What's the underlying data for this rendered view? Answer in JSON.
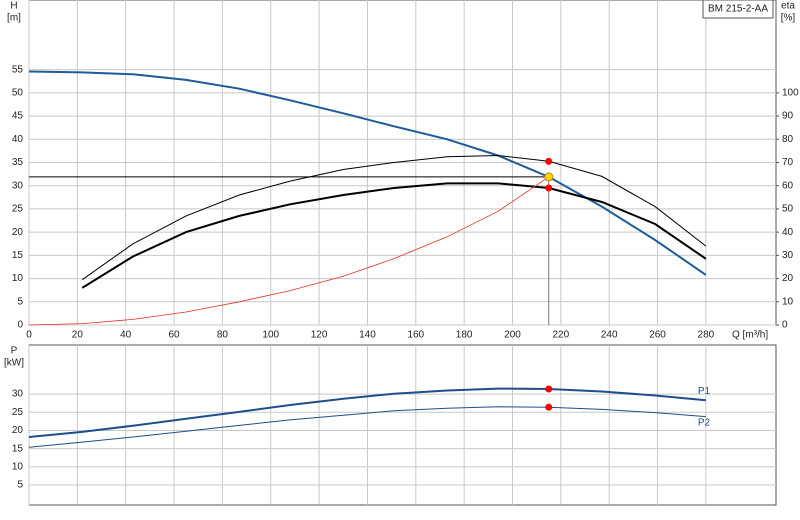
{
  "chart_data": [
    {
      "type": "line",
      "product_label": "BM 215-2-AA",
      "ylabel": "H",
      "yunit": "[m]",
      "y2label": "eta",
      "y2unit": "[%]",
      "xlabel": "Q [m³/h]",
      "xlim": [
        0,
        309
      ],
      "xticks": [
        0,
        20,
        40,
        60,
        80,
        100,
        120,
        140,
        160,
        180,
        200,
        220,
        240,
        260,
        280
      ],
      "ylim": [
        0,
        70
      ],
      "yticks": [
        0,
        5,
        10,
        15,
        20,
        25,
        30,
        35,
        40,
        45,
        50,
        55
      ],
      "y2lim": [
        0,
        140
      ],
      "y2ticks": [
        0,
        10,
        20,
        30,
        40,
        50,
        60,
        70,
        80,
        90,
        100
      ],
      "grid": true,
      "series": [
        {
          "color": "#1f5a9a",
          "width": 2,
          "x": [
            0,
            22,
            43,
            65,
            87,
            108,
            130,
            151,
            173,
            194,
            215,
            237,
            259,
            280
          ],
          "values": [
            54.6,
            54.4,
            54,
            52.8,
            50.9,
            48.4,
            45.6,
            42.8,
            40,
            36.5,
            31.9,
            25.5,
            18.3,
            10.8
          ]
        },
        {
          "color": "#000000",
          "width": 1,
          "axis": "y2",
          "x": [
            22,
            43,
            65,
            87,
            108,
            130,
            151,
            173,
            194,
            215,
            237,
            259,
            280
          ],
          "values": [
            19.5,
            35,
            47,
            56,
            62,
            67,
            70,
            72.5,
            73,
            70.5,
            64,
            51,
            34
          ]
        },
        {
          "color": "#000000",
          "width": 2,
          "axis": "y2",
          "x": [
            22,
            43,
            65,
            87,
            108,
            130,
            151,
            173,
            194,
            215,
            237,
            259,
            280
          ],
          "values": [
            16,
            29.5,
            40,
            47,
            52,
            56,
            59,
            61,
            61,
            59,
            53,
            43.5,
            28.5
          ]
        },
        {
          "color": "#e0302a",
          "width": 0.8,
          "x": [
            0,
            22,
            43,
            65,
            87,
            108,
            130,
            151,
            173,
            194,
            215
          ],
          "values": [
            0,
            0.3,
            1.2,
            2.8,
            5,
            7.4,
            10.5,
            14.3,
            19,
            24.5,
            31.9
          ]
        }
      ],
      "points": [
        {
          "x": 215,
          "y": 70.5,
          "axis": "y2",
          "color": "#ff0000"
        },
        {
          "x": 215,
          "y": 59,
          "axis": "y2",
          "color": "#ff0000"
        }
      ],
      "operating_point": {
        "x": 215,
        "y": 31.9,
        "color": "#ffd700"
      }
    },
    {
      "type": "line",
      "ylabel": "P",
      "yunit": "[kW]",
      "xlim": [
        0,
        309
      ],
      "xticks": [
        0,
        20,
        40,
        60,
        80,
        100,
        120,
        140,
        160,
        180,
        200,
        220,
        240,
        260,
        280
      ],
      "ylim": [
        -0.5,
        43.5
      ],
      "yticks": [
        5,
        10,
        15,
        20,
        25,
        30
      ],
      "grid": true,
      "series": [
        {
          "name": "P1",
          "color": "#1f4e8c",
          "width": 2,
          "x": [
            0,
            22,
            43,
            65,
            87,
            108,
            130,
            151,
            173,
            194,
            215,
            237,
            259,
            280
          ],
          "values": [
            18.2,
            19.6,
            21.3,
            23.2,
            25.1,
            27,
            28.7,
            30.1,
            31,
            31.5,
            31.4,
            30.7,
            29.6,
            28.3
          ]
        },
        {
          "name": "P2",
          "color": "#1f4e8c",
          "width": 1,
          "x": [
            0,
            22,
            43,
            65,
            87,
            108,
            130,
            151,
            173,
            194,
            215,
            237,
            259,
            280
          ],
          "values": [
            15.4,
            16.8,
            18.2,
            19.8,
            21.4,
            22.9,
            24.2,
            25.4,
            26.1,
            26.5,
            26.4,
            25.8,
            24.9,
            23.8
          ]
        }
      ],
      "points": [
        {
          "x": 215,
          "y": 31.4,
          "color": "#ff0000"
        },
        {
          "x": 215,
          "y": 26.4,
          "color": "#ff0000"
        }
      ]
    }
  ]
}
